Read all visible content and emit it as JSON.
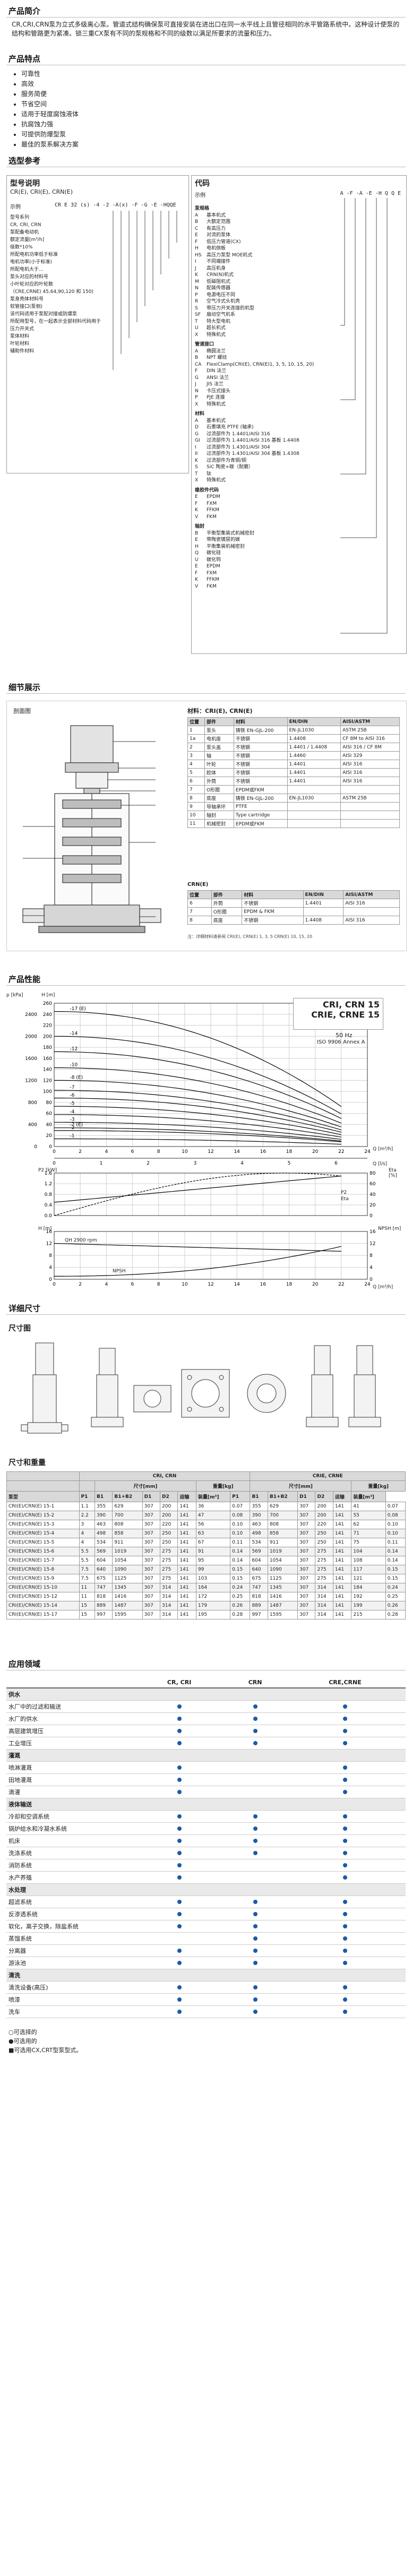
{
  "intro": {
    "title": "产品简介",
    "text": "CR,CRI,CRN泵为立式多级离心泵。管道式结构确保泵可直接安装在进出口在同一水平线上且管径相同的水平管路系统中。这种设计使泵的结构和管路更为紧凑。锁三重CX泵有不同的泵规格和不同的级数以满足所要求的流量和压力。"
  },
  "features": {
    "title": "产品特点",
    "items": [
      "可靠性",
      "高效",
      "服务简便",
      "节省空间",
      "适用于轻度腐蚀液体",
      "抗腐蚀力强",
      "可提供防爆型泵",
      "最佳的泵系解决方案"
    ]
  },
  "selection": {
    "title": "选型参考",
    "model_title": "型号说明",
    "model_sub": "CR(E), CRI(E), CRN(E)",
    "example_label": "示例",
    "example_code": "CR E 32 (s) -4 -2 -A(x) -F -G -E -HQQE",
    "model_lines": [
      "型号系列",
      "CR, CRI, CRN",
      "泵配备电动机",
      "额定流量[m³/h]",
      "级数*10%",
      "所配电机功率低于标准",
      "电机功率(小于标准)",
      "所配电机大于...",
      "泵头对应的材料号",
      "小叶轮对应的叶轮数",
      "（CRE,CRNE) 45,64,90,120 和 150)",
      "泵身壳体材料号",
      "软管接口(泵侧)",
      "该代码适用于泵配对接或防爆泵",
      "所配用型号，在一起表示全部材料代码用于",
      "压力开关式",
      "泵体材料",
      "叶轮材料",
      "辅助件材料"
    ],
    "code_title": "代码",
    "code_example_label": "示例",
    "code_example": "A -F -A -E -H Q Q E",
    "code_groups": [
      {
        "name": "泵规格",
        "rows": [
          [
            "A",
            "基本机式"
          ],
          [
            "B",
            "大额定范围"
          ],
          [
            "C",
            "有高压力"
          ],
          [
            "E",
            "对流的泵体"
          ],
          [
            "F",
            "低压力管道(CX)"
          ],
          [
            "H",
            "电机侧板"
          ],
          [
            "HS",
            "高压力泵型 MOE机式"
          ],
          [
            "I",
            "不同端接件"
          ],
          [
            "J",
            "高压机身"
          ],
          [
            "K",
            "CRN(N)机式"
          ],
          [
            "M",
            "低磁阻机式"
          ],
          [
            "N",
            "配装传感器"
          ],
          [
            "P",
            "电源电压不同"
          ],
          [
            "R",
            "空气冷式头机壳"
          ],
          [
            "S",
            "带压力开关连接的机型"
          ],
          [
            "SF",
            "扇动空气机系"
          ],
          [
            "T",
            "特大型电机"
          ],
          [
            "U",
            "超长机式"
          ],
          [
            "X",
            "特殊机式"
          ]
        ]
      },
      {
        "name": "管道接口",
        "rows": [
          [
            "A",
            "椭圆法兰"
          ],
          [
            "B",
            "NPT 螺纹"
          ],
          [
            "CA",
            "FlexiClamp(CRI(E), CRN(E)1, 3, 5, 10, 15, 20)"
          ],
          [
            "F",
            "DIN 法兰"
          ],
          [
            "G",
            "ANSI 法兰"
          ],
          [
            "J",
            "JIS 法兰"
          ],
          [
            "N",
            "卡压式接头"
          ],
          [
            "P",
            "PJE 连接"
          ],
          [
            "X",
            "特殊机式"
          ]
        ]
      },
      {
        "name": "材料",
        "rows": [
          [
            "A",
            "基本机式"
          ],
          [
            "D",
            "石墨填充 PTFE (轴承)"
          ],
          [
            "G",
            "过流部件为 1.4401/AISI 316"
          ],
          [
            "GI",
            "过流部件为 1.4401/AISI 316 基板 1.4408"
          ],
          [
            "I",
            "过流部件为 1.4301/AISI 304"
          ],
          [
            "II",
            "过流部件为 1.4301/AISI 304 基板 1.4308"
          ],
          [
            "K",
            "过流部件为青铜/铜"
          ],
          [
            "S",
            "SiC 陶瓷+碳（耐磨）"
          ],
          [
            "T",
            "钛"
          ],
          [
            "X",
            "特殊机式"
          ]
        ]
      },
      {
        "name": "橡胶件代码",
        "rows": [
          [
            "E",
            "EPDM"
          ],
          [
            "F",
            "FXM"
          ],
          [
            "K",
            "FFKM"
          ],
          [
            "V",
            "FKM"
          ]
        ]
      },
      {
        "name": "轴封",
        "rows": [
          [
            "B",
            "平衡型集装式机械密封"
          ],
          [
            "E",
            "带陶瓷镀层的碳"
          ],
          [
            "H",
            "平衡集装机械密封"
          ],
          [
            "Q",
            "碳化硅"
          ],
          [
            "U",
            "碳化钨"
          ],
          [
            "E",
            "EPDM"
          ],
          [
            "F",
            "FXM"
          ],
          [
            "K",
            "FFKM"
          ],
          [
            "V",
            "FKM"
          ]
        ]
      }
    ]
  },
  "details": {
    "title": "细节展示",
    "drawing_label": "剖面图",
    "materials_title": "材料：CRI(E), CRN(E)",
    "columns": [
      "位置",
      "部件",
      "材料",
      "EN/DIN",
      "AISI/ASTM"
    ],
    "rows": [
      [
        "1",
        "泵头",
        "铸铁 EN-GJL-200",
        "EN-JL1030",
        "ASTM 25B"
      ],
      [
        "1a",
        "电机座",
        "不锈钢",
        "1.4408",
        "CF 8M to AISI 316"
      ],
      [
        "2",
        "泵头盖",
        "不锈钢",
        "1.4401 / 1.4408",
        "AISI 316 / CF 8M"
      ],
      [
        "3",
        "轴",
        "不锈钢",
        "1.4460",
        "AISI 329"
      ],
      [
        "4",
        "叶轮",
        "不锈钢",
        "1.4401",
        "AISI 316"
      ],
      [
        "5",
        "腔体",
        "不锈钢",
        "1.4401",
        "AISI 316"
      ],
      [
        "6",
        "外筒",
        "不锈钢",
        "1.4401",
        "AISI 316"
      ],
      [
        "7",
        "O形圈",
        "EPDM或FKM",
        "",
        ""
      ],
      [
        "8",
        "底座",
        "铸铁 EN-GJL-200",
        "EN-JL1030",
        "ASTM 25B"
      ],
      [
        "9",
        "导轴承环",
        "PTFE",
        "",
        ""
      ],
      [
        "10",
        "轴封",
        "Type cartridge",
        "",
        ""
      ],
      [
        "11",
        "机械密封",
        "EPDM或FKM",
        "",
        ""
      ]
    ],
    "crn_title": "CRN(E)",
    "crn_rows": [
      [
        "6",
        "外筒",
        "不锈钢",
        "1.4401",
        "AISI 316"
      ],
      [
        "7",
        "O形圈",
        "EPDM & FKM",
        "",
        ""
      ],
      [
        "8",
        "底座",
        "不锈钢",
        "1.4408",
        "AISI 316"
      ]
    ],
    "footnote": "注：详细材料请参阅 CRI(E), CRN(E) 1, 3, 5  CRN(E) 10, 15, 20"
  },
  "performance": {
    "title": "产品性能",
    "brand_title": "CRI, CRN 15",
    "brand_title2": "CRIE, CRNE 15",
    "hz": "50 Hz",
    "iso": "ISO 9906 Annex A",
    "curve_labels": [
      "-17 (E)",
      "-14",
      "-12",
      "-10",
      "-8 (E)",
      "-7",
      "-6",
      "-5",
      "-4",
      "-3",
      "-2 (E)",
      "-2",
      "-1"
    ],
    "p_unit": "p [kPa]",
    "h_unit": "H [m]",
    "q_unit": "Q [m³/h]",
    "qls_unit": "Q [l/s]",
    "p2_label": "P2 [kW]",
    "eta_label": "Eta [%]",
    "npsh_label": "NPSH [m]",
    "p2_legend": "P2",
    "eta_legend": "Eta",
    "rpm": "QH 2900 rpm",
    "npsh_text": "NPSH"
  },
  "dimensions": {
    "title": "详细尺寸",
    "subtitle": "尺寸图",
    "table_title": "尺寸和重量",
    "group_left": "CRI, CRN",
    "group_right": "CRIE, CRNE",
    "header_a": "尺寸[mm]",
    "header_b": "重量[kg]",
    "col_labels": [
      "泵型",
      "P1",
      "B1",
      "B1+B2",
      "D1",
      "D2",
      "运输",
      "装量[m³]",
      "P1",
      "B1",
      "B1+B2",
      "D1",
      "D2",
      "运输",
      "装量[m³]"
    ],
    "rows": [
      [
        "CRI(E)/CRN(E) 15-1",
        "1.1",
        "355",
        "629",
        "307",
        "200",
        "141",
        "36",
        "0.07",
        "355",
        "629",
        "307",
        "200",
        "141",
        "41",
        "0.07"
      ],
      [
        "CRI(E)/CRN(E) 15-2",
        "2.2",
        "390",
        "700",
        "307",
        "200",
        "141",
        "47",
        "0.08",
        "390",
        "700",
        "307",
        "200",
        "141",
        "55",
        "0.08"
      ],
      [
        "CRI(E)/CRN(E) 15-3",
        "3",
        "463",
        "808",
        "307",
        "220",
        "141",
        "56",
        "0.10",
        "463",
        "808",
        "307",
        "220",
        "141",
        "62",
        "0.10"
      ],
      [
        "CRI(E)/CRN(E) 15-4",
        "4",
        "498",
        "858",
        "307",
        "250",
        "141",
        "63",
        "0.10",
        "498",
        "858",
        "307",
        "250",
        "141",
        "71",
        "0.10"
      ],
      [
        "CRI(E)/CRN(E) 15-5",
        "4",
        "534",
        "911",
        "307",
        "250",
        "141",
        "67",
        "0.11",
        "534",
        "911",
        "307",
        "250",
        "141",
        "75",
        "0.11"
      ],
      [
        "CRI(E)/CRN(E) 15-6",
        "5.5",
        "569",
        "1019",
        "307",
        "275",
        "141",
        "91",
        "0.14",
        "569",
        "1019",
        "307",
        "275",
        "141",
        "104",
        "0.14"
      ],
      [
        "CRI(E)/CRN(E) 15-7",
        "5.5",
        "604",
        "1054",
        "307",
        "275",
        "141",
        "95",
        "0.14",
        "604",
        "1054",
        "307",
        "275",
        "141",
        "108",
        "0.14"
      ],
      [
        "CRI(E)/CRN(E) 15-8",
        "7.5",
        "640",
        "1090",
        "307",
        "275",
        "141",
        "99",
        "0.15",
        "640",
        "1090",
        "307",
        "275",
        "141",
        "117",
        "0.15"
      ],
      [
        "CRI(E)/CRN(E) 15-9",
        "7.5",
        "675",
        "1125",
        "307",
        "275",
        "141",
        "103",
        "0.15",
        "675",
        "1125",
        "307",
        "275",
        "141",
        "121",
        "0.15"
      ],
      [
        "CRI(E)/CRN(E) 15-10",
        "11",
        "747",
        "1345",
        "307",
        "314",
        "141",
        "164",
        "0.24",
        "747",
        "1345",
        "307",
        "314",
        "141",
        "184",
        "0.24"
      ],
      [
        "CRI(E)/CRN(E) 15-12",
        "11",
        "818",
        "1416",
        "307",
        "314",
        "141",
        "172",
        "0.25",
        "818",
        "1416",
        "307",
        "314",
        "141",
        "192",
        "0.25"
      ],
      [
        "CRI(E)/CRN(E) 15-14",
        "15",
        "889",
        "1487",
        "307",
        "314",
        "141",
        "179",
        "0.26",
        "889",
        "1487",
        "307",
        "314",
        "141",
        "199",
        "0.26"
      ],
      [
        "CRI(E)/CRN(E) 15-17",
        "15",
        "997",
        "1595",
        "307",
        "314",
        "141",
        "195",
        "0.28",
        "997",
        "1595",
        "307",
        "314",
        "141",
        "215",
        "0.28"
      ]
    ]
  },
  "applications": {
    "title": "应用领域",
    "columns": [
      "",
      "CR, CRI",
      "CRN",
      "CRE,CRNE"
    ],
    "rows": [
      {
        "label": "供水",
        "bold": true,
        "cells": [
          false,
          false,
          false
        ]
      },
      {
        "label": "水厂中的过滤和输送",
        "cells": [
          true,
          true,
          true
        ]
      },
      {
        "label": "水厂的供水",
        "cells": [
          true,
          true,
          true
        ]
      },
      {
        "label": "高层建筑增压",
        "cells": [
          true,
          true,
          true
        ]
      },
      {
        "label": "工业增压",
        "cells": [
          true,
          true,
          true
        ]
      },
      {
        "label": "灌溉",
        "bold": true,
        "cells": [
          false,
          false,
          false
        ]
      },
      {
        "label": "喷淋灌溉",
        "cells": [
          true,
          false,
          true
        ]
      },
      {
        "label": "田地灌溉",
        "cells": [
          true,
          false,
          true
        ]
      },
      {
        "label": "滴灌",
        "cells": [
          true,
          false,
          true
        ]
      },
      {
        "label": "液体输送",
        "bold": true,
        "cells": [
          false,
          false,
          false
        ]
      },
      {
        "label": "冷却和空调系统",
        "cells": [
          true,
          true,
          true
        ]
      },
      {
        "label": "锅炉给水和冷凝水系统",
        "cells": [
          true,
          true,
          true
        ]
      },
      {
        "label": "机床",
        "cells": [
          true,
          true,
          true
        ]
      },
      {
        "label": "洗涤系统",
        "cells": [
          true,
          true,
          true
        ]
      },
      {
        "label": "消防系统",
        "cells": [
          true,
          false,
          true
        ]
      },
      {
        "label": "水产养殖",
        "cells": [
          true,
          false,
          true
        ]
      },
      {
        "label": "水处理",
        "bold": true,
        "cells": [
          false,
          false,
          false
        ]
      },
      {
        "label": "超滤系统",
        "cells": [
          true,
          true,
          true
        ]
      },
      {
        "label": "反渗透系统",
        "cells": [
          true,
          true,
          true
        ]
      },
      {
        "label": "软化，离子交换，除盐系统",
        "cells": [
          true,
          true,
          true
        ]
      },
      {
        "label": "蒸馏系统",
        "cells": [
          false,
          true,
          true
        ]
      },
      {
        "label": "分离器",
        "cells": [
          true,
          true,
          true
        ]
      },
      {
        "label": "游泳池",
        "cells": [
          true,
          true,
          true
        ]
      },
      {
        "label": "清洗",
        "bold": true,
        "cells": [
          false,
          false,
          false
        ]
      },
      {
        "label": "清洗设备(高压)",
        "cells": [
          true,
          true,
          true
        ]
      },
      {
        "label": "喷漆",
        "cells": [
          true,
          true,
          true
        ]
      },
      {
        "label": "洗车",
        "cells": [
          true,
          true,
          true
        ]
      }
    ],
    "legend1": "○可选择的",
    "legend2": "●可选用的",
    "legend3": "■可选用CX,CRT型泵型式。"
  }
}
